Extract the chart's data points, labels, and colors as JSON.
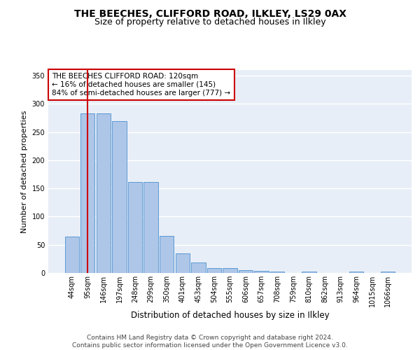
{
  "title1": "THE BEECHES, CLIFFORD ROAD, ILKLEY, LS29 0AX",
  "title2": "Size of property relative to detached houses in Ilkley",
  "xlabel": "Distribution of detached houses by size in Ilkley",
  "ylabel": "Number of detached properties",
  "bar_labels": [
    "44sqm",
    "95sqm",
    "146sqm",
    "197sqm",
    "248sqm",
    "299sqm",
    "350sqm",
    "401sqm",
    "453sqm",
    "504sqm",
    "555sqm",
    "606sqm",
    "657sqm",
    "708sqm",
    "759sqm",
    "810sqm",
    "862sqm",
    "913sqm",
    "964sqm",
    "1015sqm",
    "1066sqm"
  ],
  "bar_values": [
    65,
    283,
    283,
    270,
    161,
    161,
    66,
    35,
    19,
    9,
    9,
    5,
    4,
    3,
    0,
    2,
    0,
    0,
    2,
    0,
    2
  ],
  "bar_color": "#aec6e8",
  "bar_edge_color": "#5b9bd5",
  "background_color": "#e8eef7",
  "grid_color": "#ffffff",
  "vline_x": 1,
  "vline_color": "#cc0000",
  "annotation_text": "THE BEECHES CLIFFORD ROAD: 120sqm\n← 16% of detached houses are smaller (145)\n84% of semi-detached houses are larger (777) →",
  "annotation_box_color": "#ffffff",
  "annotation_box_edge_color": "#cc0000",
  "footer_text": "Contains HM Land Registry data © Crown copyright and database right 2024.\nContains public sector information licensed under the Open Government Licence v3.0.",
  "ylim": [
    0,
    360
  ],
  "yticks": [
    0,
    50,
    100,
    150,
    200,
    250,
    300,
    350
  ],
  "title1_fontsize": 10,
  "title2_fontsize": 9,
  "xlabel_fontsize": 8.5,
  "ylabel_fontsize": 8,
  "tick_fontsize": 7,
  "annotation_fontsize": 7.5,
  "footer_fontsize": 6.5
}
